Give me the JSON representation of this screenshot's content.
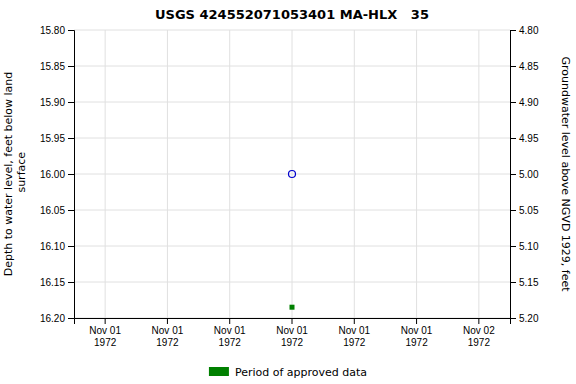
{
  "chart_data": {
    "type": "scatter",
    "title": "USGS 424552071053401 MA-HLX   35",
    "ylabel": "Depth to water level, feet below land\n surface",
    "y2label": "Groundwater level above NGVD 1929, feet",
    "categories": [
      "Nov 01\n1972",
      "Nov 01\n1972",
      "Nov 01\n1972",
      "Nov 01\n1972",
      "Nov 01\n1972",
      "Nov 01\n1972",
      "Nov 02\n1972"
    ],
    "series": [
      {
        "color": "#0000cc",
        "marker": "open-circle",
        "values": [
          null,
          null,
          null,
          16.0,
          null,
          null,
          null
        ]
      },
      {
        "name": "Period of approved data",
        "color": "#008000",
        "marker": "square",
        "values": [
          null,
          null,
          null,
          16.185,
          null,
          null,
          null
        ]
      }
    ],
    "ylim": [
      16.2,
      15.8
    ],
    "yticks": [
      {
        "value": 15.8,
        "label": "15.80"
      },
      15.85,
      {
        "value": 15.9,
        "label": "15.90"
      },
      15.95,
      {
        "value": 16.0,
        "label": "16.00"
      },
      16.05,
      {
        "value": 16.1,
        "label": "16.10"
      },
      16.15,
      {
        "value": 16.2,
        "label": "16.20"
      }
    ],
    "y2lim": [
      5.2,
      4.8
    ],
    "y2ticks": [
      {
        "value": 5.2,
        "label": "5.20"
      },
      5.15,
      {
        "value": 5.1,
        "label": "5.10"
      },
      5.05,
      {
        "value": 5.0,
        "label": "5.00"
      },
      4.95,
      {
        "value": 4.9,
        "label": "4.90"
      },
      4.85,
      {
        "value": 4.8,
        "label": "4.80"
      }
    ],
    "grid": true,
    "legend": "bottom"
  }
}
